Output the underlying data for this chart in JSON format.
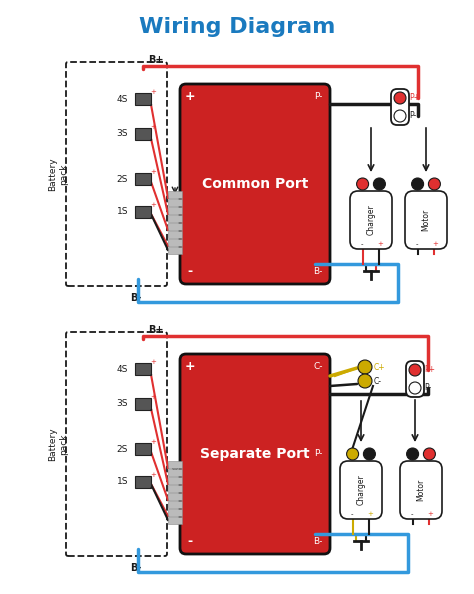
{
  "title": "Wiring Diagram",
  "title_color": "#1a7abf",
  "title_fontsize": 16,
  "bg_color": "#ffffff",
  "label1": "Common Port",
  "label2": "Separate Port",
  "cell_labels": [
    "4S",
    "3S",
    "2S",
    "1S"
  ],
  "bplus": "B+",
  "bminus": "B-",
  "bat_label": "Battery\npack",
  "RED": "#e03030",
  "BLUE": "#3399dd",
  "BLACK": "#1a1a1a",
  "YELLOW": "#ccaa00",
  "BMS_RED": "#cc2222",
  "charger": "Charger",
  "motor": "Motor",
  "wire_lw": 2.5,
  "cell_wire_lw": 1.5
}
